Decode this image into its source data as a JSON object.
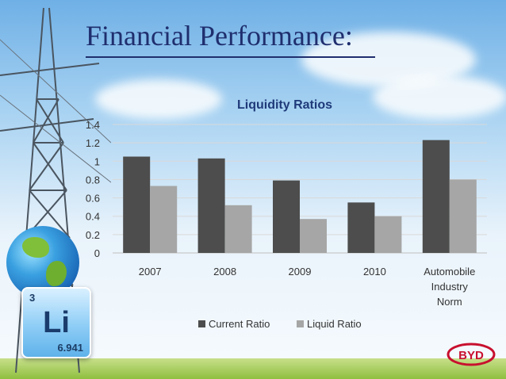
{
  "slide": {
    "title": "Financial Performance:"
  },
  "element_tile": {
    "number": "3",
    "symbol": "Li",
    "mass": "6.941"
  },
  "logo_text": "BYD",
  "colors": {
    "current_ratio": "#4d4d4d",
    "liquid_ratio": "#a6a6a6",
    "title": "#1f2e6e"
  },
  "chart_data": {
    "type": "bar",
    "title": "Liquidity Ratios",
    "categories": [
      [
        "2007"
      ],
      [
        "2008"
      ],
      [
        "2009"
      ],
      [
        "2010"
      ],
      [
        "Automobile",
        "Industry",
        "Norm"
      ]
    ],
    "series": [
      {
        "name": "Current Ratio",
        "values": [
          1.05,
          1.03,
          0.79,
          0.55,
          1.23
        ]
      },
      {
        "name": "Liquid Ratio",
        "values": [
          0.73,
          0.52,
          0.37,
          0.4,
          0.8
        ]
      }
    ],
    "ylim": [
      0,
      1.4
    ],
    "yticks": [
      "0",
      "0.2",
      "0.4",
      "0.6",
      "0.8",
      "1",
      "1.2",
      "1.4"
    ],
    "grid": true,
    "legend_position": "bottom"
  }
}
